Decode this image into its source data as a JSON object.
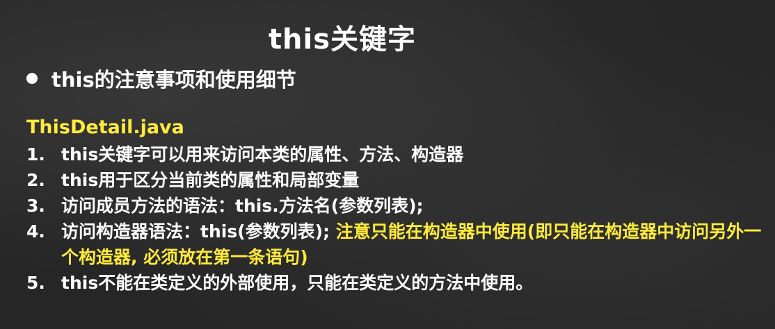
{
  "slide": {
    "title": "this关键字",
    "bullet": "this的注意事项和使用细节",
    "file_name": "ThisDetail.java",
    "items": [
      {
        "num": "1.",
        "text": "this关键字可以用来访问本类的属性、方法、构造器"
      },
      {
        "num": "2.",
        "text": "this用于区分当前类的属性和局部变量"
      },
      {
        "num": "3.",
        "text": "访问成员方法的语法：this.方法名(参数列表);"
      },
      {
        "num": "4.",
        "text": "访问构造器语法：this(参数列表); ",
        "highlight": "注意只能在构造器中使用(即只能在构造器中访问另外一个构造器, 必须放在第一条语句)"
      },
      {
        "num": "5.",
        "text": "this不能在类定义的外部使用，只能在类定义的方法中使用。"
      }
    ]
  },
  "colors": {
    "background": "#262626",
    "text": "#ffffff",
    "highlight": "#ffeb3b"
  }
}
